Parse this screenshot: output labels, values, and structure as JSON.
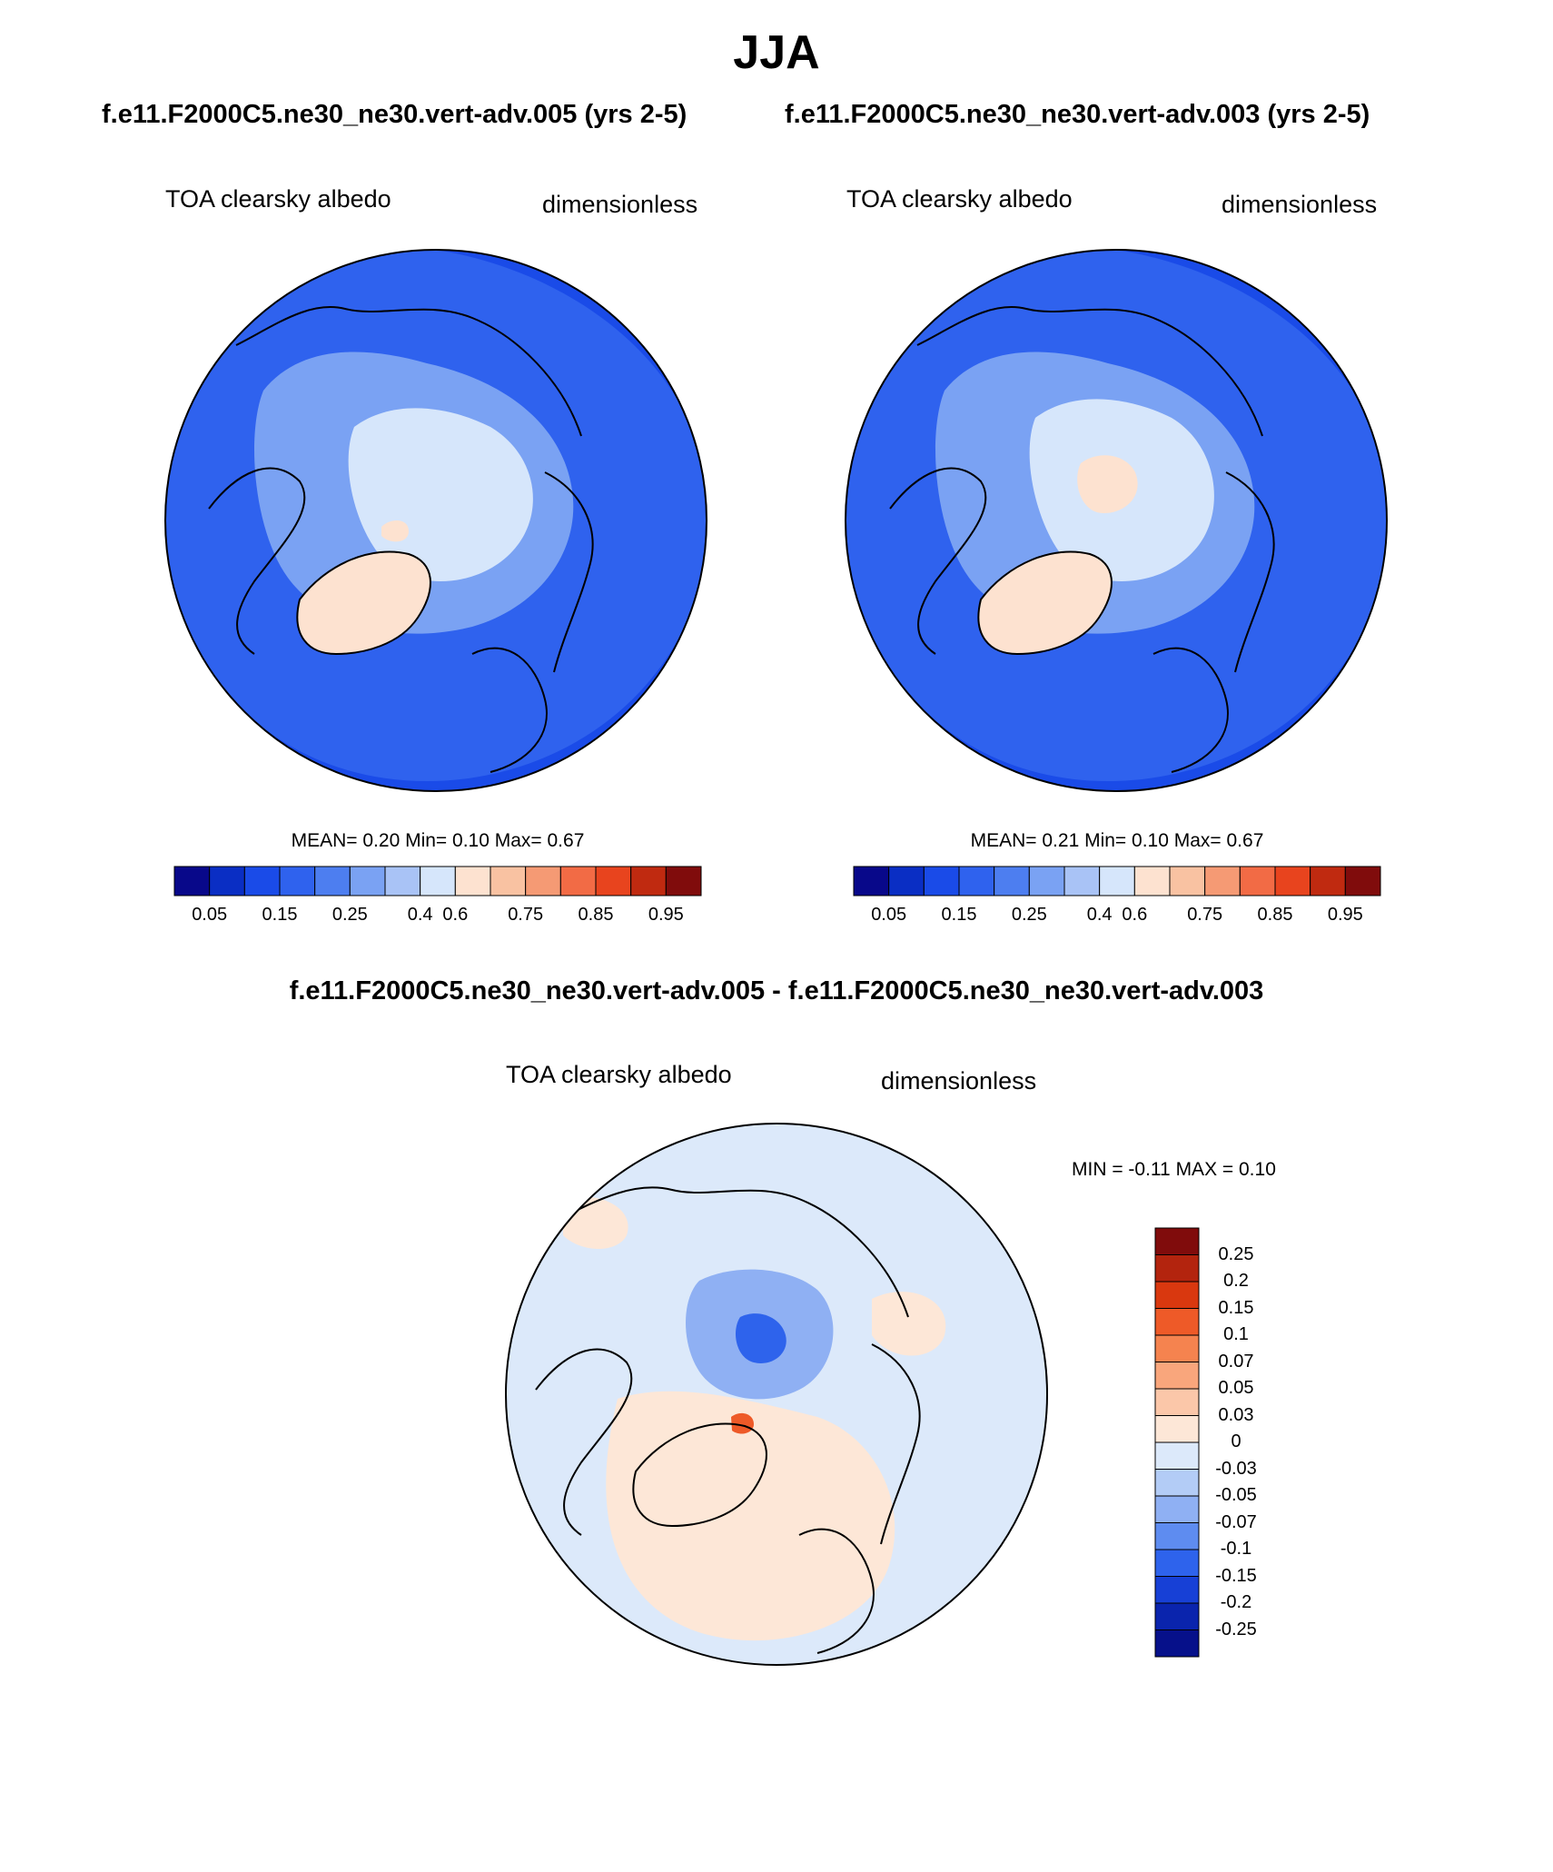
{
  "title": "JJA",
  "subtitle_left": "f.e11.F2000C5.ne30_ne30.vert-adv.005 (yrs 2-5)",
  "subtitle_right": "f.e11.F2000C5.ne30_ne30.vert-adv.003 (yrs 2-5)",
  "diff_title": "f.e11.F2000C5.ne30_ne30.vert-adv.005 - f.e11.F2000C5.ne30_ne30.vert-adv.003",
  "panels": [
    {
      "variable": "TOA clearsky albedo",
      "units": "dimensionless",
      "stats": "MEAN=  0.20  Min=  0.10  Max=  0.67",
      "colorbar_ticks": [
        "0.05",
        "0.15",
        "0.25",
        "0.4",
        "0.6",
        "0.75",
        "0.85",
        "0.95"
      ]
    },
    {
      "variable": "TOA clearsky albedo",
      "units": "dimensionless",
      "stats": "MEAN=  0.21  Min=  0.10  Max=  0.67",
      "colorbar_ticks": [
        "0.05",
        "0.15",
        "0.25",
        "0.4",
        "0.6",
        "0.75",
        "0.85",
        "0.95"
      ]
    },
    {
      "variable": "TOA clearsky albedo",
      "units": "dimensionless",
      "stats": "MIN =  -0.11 MAX =   0.10",
      "colorbar_ticks": [
        "0.25",
        "0.2",
        "0.15",
        "0.1",
        "0.07",
        "0.05",
        "0.03",
        "0",
        "-0.03",
        "-0.05",
        "-0.07",
        "-0.1",
        "-0.15",
        "-0.2",
        "-0.25"
      ]
    }
  ],
  "colors": {
    "abs_scale": [
      "#08088a",
      "#0a2ec4",
      "#1a4be8",
      "#2f62ee",
      "#4d7ef0",
      "#7aa2f3",
      "#a9c3f6",
      "#d6e6fb",
      "#fde2d0",
      "#f9c2a2",
      "#f59a74",
      "#f26b45",
      "#e8441e",
      "#c02a10",
      "#800c0c"
    ],
    "diff_scale": [
      "#800c0c",
      "#b3240e",
      "#d9380f",
      "#ee5a28",
      "#f5834f",
      "#f9a67c",
      "#fbc7a9",
      "#fde7d7",
      "#dce9fa",
      "#b3ccf6",
      "#8fb0f3",
      "#5e8cf0",
      "#2e63ec",
      "#1740d6",
      "#0a24ad",
      "#06108a"
    ],
    "land_line": "#000000"
  }
}
